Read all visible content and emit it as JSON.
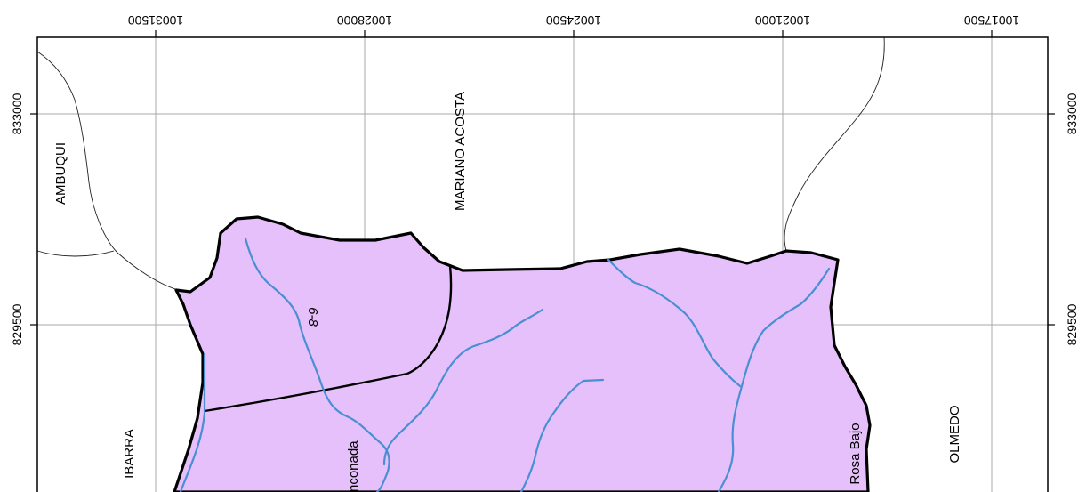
{
  "map": {
    "top_ticks": [
      "10031500",
      "10028000",
      "10024500",
      "10021000",
      "10017500"
    ],
    "side_ticks": [
      "833000",
      "829500"
    ],
    "place_labels": {
      "ambuqui": "AMBUQUI",
      "mariano_acosta": "MARIANO ACOSTA",
      "ibarra": "IBARRA",
      "olmedo": "OLMEDO",
      "rosa_bajo": "Rosa Bajo",
      "rinconada": "nconada",
      "basin_code": "6-8"
    },
    "colors": {
      "basin_fill": "#e6c0fa",
      "river": "#4a8fd4",
      "boundary": "#000000",
      "grid": "#a8a8a8"
    }
  }
}
